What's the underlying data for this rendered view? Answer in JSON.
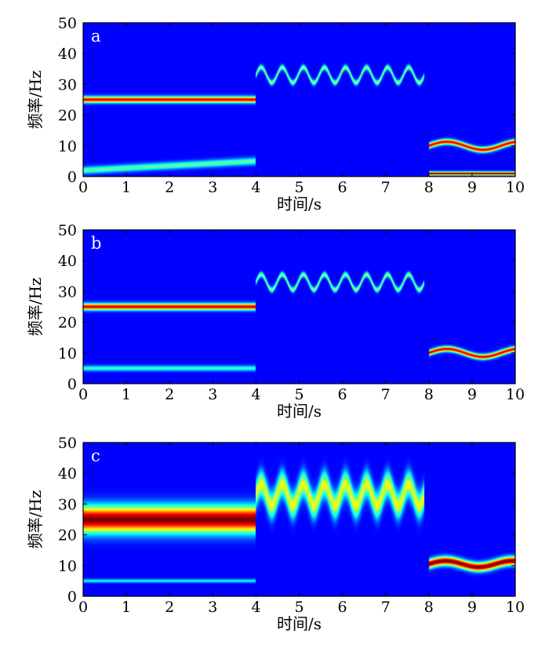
{
  "chart_data": [
    {
      "type": "heatmap",
      "panel_label": "a",
      "xlabel": "时间/s",
      "ylabel": "频率/Hz",
      "xlim": [
        0,
        10
      ],
      "ylim": [
        0,
        50
      ],
      "xticks": [
        0,
        1,
        2,
        3,
        4,
        5,
        6,
        7,
        8,
        9,
        10
      ],
      "yticks": [
        0,
        10,
        20,
        30,
        40,
        50
      ],
      "colormap": "jet",
      "components": [
        {
          "name": "constant 25 Hz",
          "t_range": [
            0,
            4
          ],
          "freq": 25,
          "bandwidth_hz": 1.4,
          "intensity": 0.9
        },
        {
          "name": "low-frequency oscillating component",
          "t_range": [
            0,
            4
          ],
          "freq_start": 2,
          "freq_end": 5,
          "bandwidth_hz": 1.6,
          "intensity": 0.4
        },
        {
          "name": "sinusoidal FM around 33 Hz",
          "t_range": [
            4,
            7.9
          ],
          "center_freq": 33,
          "amplitude_hz": 2.5,
          "cycles": 8,
          "bandwidth_hz": 1.2,
          "intensity": 0.45
        },
        {
          "name": "sinusoidal FM around 10 Hz",
          "t_range": [
            8,
            10
          ],
          "center_freq": 10,
          "amplitude_hz": 1.3,
          "cycles": 1.2,
          "bandwidth_hz": 1.2,
          "intensity": 0.9
        },
        {
          "name": "low band artifact",
          "t_range": [
            8,
            10
          ],
          "freq": 1,
          "bandwidth_hz": 0.8,
          "intensity": 1.0
        }
      ]
    },
    {
      "type": "heatmap",
      "panel_label": "b",
      "xlabel": "时间/s",
      "ylabel": "频率/Hz",
      "xlim": [
        0,
        10
      ],
      "ylim": [
        0,
        50
      ],
      "xticks": [
        0,
        1,
        2,
        3,
        4,
        5,
        6,
        7,
        8,
        9,
        10
      ],
      "yticks": [
        0,
        10,
        20,
        30,
        40,
        50
      ],
      "colormap": "jet",
      "components": [
        {
          "name": "constant 25 Hz",
          "t_range": [
            0,
            4
          ],
          "freq": 25,
          "bandwidth_hz": 1.5,
          "intensity": 0.9
        },
        {
          "name": "constant 5 Hz",
          "t_range": [
            0,
            4
          ],
          "freq": 5,
          "bandwidth_hz": 1.2,
          "intensity": 0.35
        },
        {
          "name": "sinusoidal FM around 33 Hz",
          "t_range": [
            4,
            7.9
          ],
          "center_freq": 33,
          "amplitude_hz": 2.5,
          "cycles": 8,
          "bandwidth_hz": 1.2,
          "intensity": 0.45
        },
        {
          "name": "sinusoidal FM around 10 Hz",
          "t_range": [
            8,
            10
          ],
          "center_freq": 10,
          "amplitude_hz": 1.3,
          "cycles": 1.2,
          "bandwidth_hz": 1.2,
          "intensity": 0.9
        }
      ]
    },
    {
      "type": "heatmap",
      "panel_label": "c",
      "xlabel": "时间/s",
      "ylabel": "频率/Hz",
      "xlim": [
        0,
        10
      ],
      "ylim": [
        0,
        50
      ],
      "xticks": [
        0,
        1,
        2,
        3,
        4,
        5,
        6,
        7,
        8,
        9,
        10
      ],
      "yticks": [
        0,
        10,
        20,
        30,
        40,
        50
      ],
      "colormap": "jet",
      "components": [
        {
          "name": "broad 25 Hz band",
          "t_range": [
            0,
            4
          ],
          "freq": 25,
          "bandwidth_hz": 6,
          "intensity": 1.0
        },
        {
          "name": "weak 5 Hz line",
          "t_range": [
            0,
            4
          ],
          "freq": 5,
          "bandwidth_hz": 0.8,
          "intensity": 0.3
        },
        {
          "name": "broad FM band around 33 Hz",
          "t_range": [
            4,
            7.9
          ],
          "center_freq": 33,
          "amplitude_hz": 3.5,
          "cycles": 8,
          "bandwidth_hz": 6,
          "intensity": 0.55
        },
        {
          "name": "sinusoidal FM around 10 Hz",
          "t_range": [
            8,
            10
          ],
          "center_freq": 10.5,
          "amplitude_hz": 1,
          "cycles": 1.3,
          "bandwidth_hz": 2,
          "intensity": 1.0
        }
      ]
    }
  ]
}
